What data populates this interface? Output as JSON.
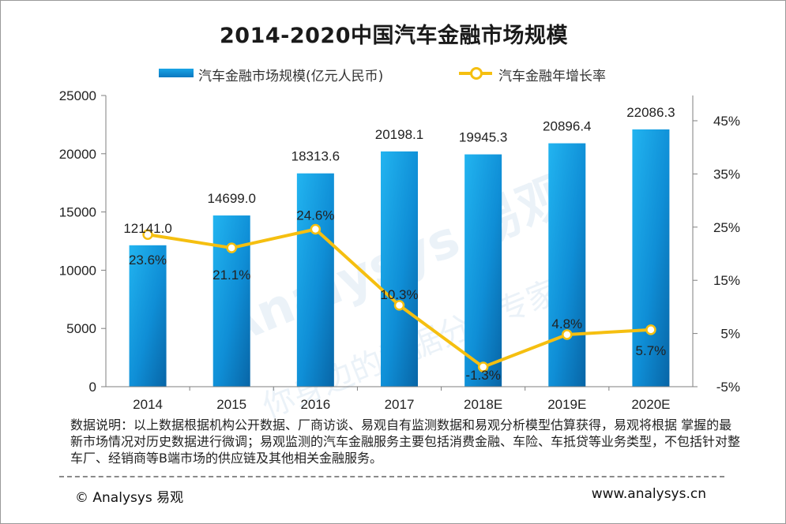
{
  "chart_data": {
    "type": "bar+line",
    "title": "2014-2020中国汽车金融市场规模",
    "categories": [
      "2014",
      "2015",
      "2016",
      "2017",
      "2018E",
      "2019E",
      "2020E"
    ],
    "series": [
      {
        "name": "汽车金融市场规模(亿元人民币)",
        "type": "bar",
        "axis": "left",
        "values": [
          12141.0,
          14699.0,
          18313.6,
          20198.1,
          19945.3,
          20896.4,
          22086.3
        ],
        "labels": [
          "12141.0",
          "14699.0",
          "18313.6",
          "20198.1",
          "19945.3",
          "20896.4",
          "22086.3"
        ]
      },
      {
        "name": "汽车金融年增长率",
        "type": "line",
        "axis": "right",
        "values": [
          23.6,
          21.1,
          24.6,
          10.3,
          -1.3,
          4.8,
          5.7
        ],
        "labels": [
          "23.6%",
          "21.1%",
          "24.6%",
          "10.3%",
          "-1.3%",
          "4.8%",
          "5.7%"
        ]
      }
    ],
    "left_axis": {
      "ylim": [
        0,
        25000
      ],
      "ticks": [
        "0",
        "5000",
        "10000",
        "15000",
        "20000",
        "25000"
      ],
      "tick_values": [
        0,
        5000,
        10000,
        15000,
        20000,
        25000
      ]
    },
    "right_axis": {
      "ylim": [
        -5,
        50
      ],
      "ticks": [
        "-5%",
        "5%",
        "15%",
        "25%",
        "35%",
        "45%"
      ],
      "tick_values": [
        -5,
        5,
        15,
        25,
        35,
        45
      ]
    },
    "grid": false,
    "legend_position": "top-center",
    "colors": {
      "bar_top": "#1aa8ea",
      "bar_bottom": "#0a6fb3",
      "line": "#f5bf10",
      "watermark": "#dbe9f4"
    }
  },
  "watermark": {
    "line1": "Analysys 易观",
    "line2": "你身边的数据分析专家"
  },
  "note": "数据说明：以上数据根据机构公开数据、厂商访谈、易观自有监测数据和易观分析模型估算获得，易观将根据 掌握的最新市场情况对历史数据进行微调；易观监测的汽车金融服务主要包括消费金融、车险、车抵贷等业务类型，不包括针对整车厂、经销商等B端市场的供应链及其他相关金融服务。",
  "footer": {
    "copyright": "© Analysys 易观",
    "website": "www.analysys.cn"
  }
}
